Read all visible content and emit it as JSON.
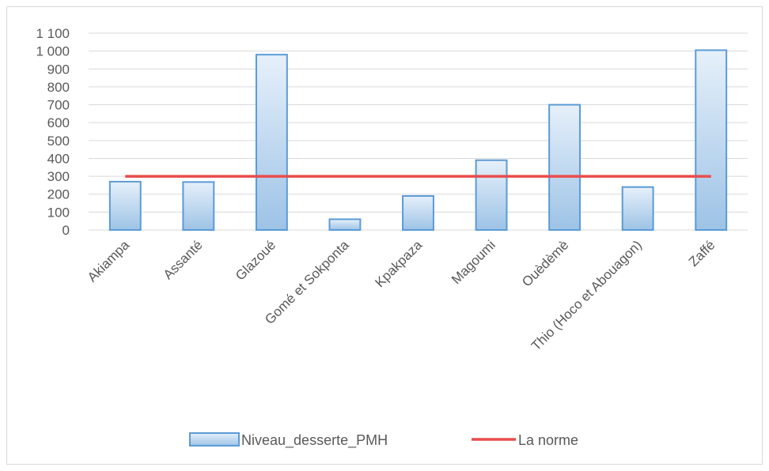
{
  "chart_data": {
    "type": "bar",
    "categories": [
      "Akiampa",
      "Assanté",
      "Glazoué",
      "Gomé et Sokponta",
      "Kpakpaza",
      "Magoumi",
      "Ouèdèmè",
      "Thio (Hoco et Abouagon)",
      "Zaffé"
    ],
    "series": [
      {
        "name": "Niveau_desserte_PMH",
        "type": "bar",
        "values": [
          270,
          268,
          980,
          60,
          190,
          390,
          700,
          240,
          1005
        ],
        "color": "#5b9bd5"
      },
      {
        "name": "La norme",
        "type": "line",
        "values": [
          300,
          300,
          300,
          300,
          300,
          300,
          300,
          300,
          300
        ],
        "color": "#e84c4c"
      }
    ],
    "ylim": [
      0,
      1100
    ],
    "yticks": [
      0,
      100,
      200,
      300,
      400,
      500,
      600,
      700,
      800,
      900,
      1000,
      1100
    ],
    "ytick_labels": [
      "0",
      "100",
      "200",
      "300",
      "400",
      "500",
      "600",
      "700",
      "800",
      "900",
      "1 000",
      "1 100"
    ],
    "grid": true,
    "legend_position": "bottom",
    "title": "",
    "xlabel": "",
    "ylabel": ""
  }
}
